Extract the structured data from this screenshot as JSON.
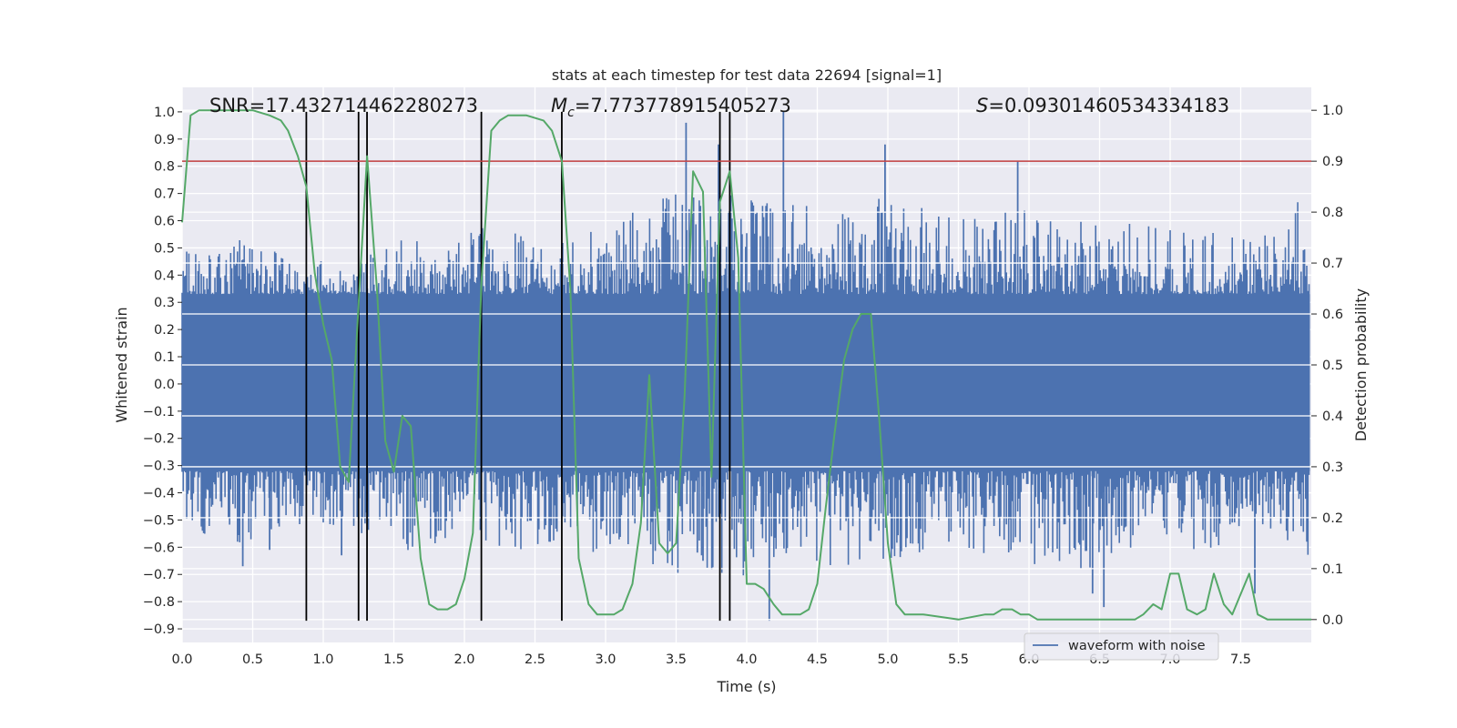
{
  "chart_data": {
    "type": "line",
    "title": "stats at each timestep for test data 22694 [signal=1]",
    "xlabel": "Time (s)",
    "ylabel": "Whitened strain",
    "y2label": "Detection probability",
    "xlim": [
      0.0,
      8.0
    ],
    "ylim": [
      -0.95,
      1.09
    ],
    "y2lim": [
      -0.045,
      1.045
    ],
    "xticks": [
      0.0,
      0.5,
      1.0,
      1.5,
      2.0,
      2.5,
      3.0,
      3.5,
      4.0,
      4.5,
      5.0,
      5.5,
      6.0,
      6.5,
      7.0,
      7.5
    ],
    "xtick_labels": [
      "0.0",
      "0.5",
      "1.0",
      "1.5",
      "2.0",
      "2.5",
      "3.0",
      "3.5",
      "4.0",
      "4.5",
      "5.0",
      "5.5",
      "6.0",
      "6.5",
      "7.0",
      "7.5"
    ],
    "yticks": [
      -0.9,
      -0.8,
      -0.7,
      -0.6,
      -0.5,
      -0.4,
      -0.3,
      -0.2,
      -0.1,
      0.0,
      0.1,
      0.2,
      0.3,
      0.4,
      0.5,
      0.6,
      0.7,
      0.8,
      0.9,
      1.0
    ],
    "ytick_labels": [
      "−0.9",
      "−0.8",
      "−0.7",
      "−0.6",
      "−0.5",
      "−0.4",
      "−0.3",
      "−0.2",
      "−0.1",
      "0.0",
      "0.1",
      "0.2",
      "0.3",
      "0.4",
      "0.5",
      "0.6",
      "0.7",
      "0.8",
      "0.9",
      "1.0"
    ],
    "y2ticks": [
      0.0,
      0.1,
      0.2,
      0.3,
      0.4,
      0.5,
      0.6,
      0.7,
      0.8,
      0.9,
      1.0
    ],
    "y2tick_labels": [
      "0.0",
      "0.1",
      "0.2",
      "0.3",
      "0.4",
      "0.5",
      "0.6",
      "0.7",
      "0.8",
      "0.9",
      "1.0"
    ],
    "grid": true,
    "legend": {
      "location": "lower-right",
      "entries": [
        "waveform with noise"
      ]
    },
    "annotations": {
      "snr": "SNR=17.432714462280273",
      "mc_symbol": "M",
      "mc_sub": "c",
      "mc_value": "=7.773778915405273",
      "s_symbol": "S",
      "s_value": "=0.09301460534334183"
    },
    "threshold_line": {
      "y2": 0.9,
      "color": "#c03d3e"
    },
    "vertical_lines_x": [
      0.88,
      1.25,
      1.31,
      2.12,
      2.69,
      3.81,
      3.88
    ],
    "vertical_lines_y_range": [
      -0.87,
      1.0
    ],
    "waveform": {
      "name": "waveform with noise",
      "color": "#4c72b0",
      "sample_dt": 0.008,
      "core_band": [
        -0.32,
        0.33
      ],
      "envelope_top": [
        [
          0.0,
          0.5
        ],
        [
          0.4,
          0.53
        ],
        [
          0.9,
          0.48
        ],
        [
          1.2,
          0.42
        ],
        [
          1.5,
          0.55
        ],
        [
          1.9,
          0.5
        ],
        [
          2.2,
          0.62
        ],
        [
          2.6,
          0.5
        ],
        [
          3.0,
          0.58
        ],
        [
          3.5,
          0.72
        ],
        [
          3.9,
          0.7
        ],
        [
          4.3,
          0.66
        ],
        [
          4.8,
          0.7
        ],
        [
          5.3,
          0.64
        ],
        [
          5.8,
          0.66
        ],
        [
          6.3,
          0.6
        ],
        [
          6.8,
          0.62
        ],
        [
          7.2,
          0.58
        ],
        [
          7.6,
          0.52
        ],
        [
          8.0,
          0.72
        ]
      ],
      "envelope_bottom": [
        [
          0.0,
          -0.52
        ],
        [
          0.4,
          -0.6
        ],
        [
          0.9,
          -0.52
        ],
        [
          1.2,
          -0.55
        ],
        [
          1.5,
          -0.62
        ],
        [
          1.9,
          -0.6
        ],
        [
          2.2,
          -0.62
        ],
        [
          2.6,
          -0.6
        ],
        [
          3.0,
          -0.66
        ],
        [
          3.5,
          -0.7
        ],
        [
          3.9,
          -0.72
        ],
        [
          4.3,
          -0.66
        ],
        [
          4.8,
          -0.7
        ],
        [
          5.3,
          -0.62
        ],
        [
          5.8,
          -0.64
        ],
        [
          6.3,
          -0.7
        ],
        [
          6.8,
          -0.64
        ],
        [
          7.2,
          -0.62
        ],
        [
          7.6,
          -0.55
        ],
        [
          8.0,
          -0.65
        ]
      ],
      "spikes": [
        [
          3.57,
          0.96
        ],
        [
          3.8,
          0.88
        ],
        [
          4.26,
          1.0
        ],
        [
          4.98,
          0.88
        ],
        [
          5.92,
          0.82
        ],
        [
          3.65,
          -0.62
        ],
        [
          3.69,
          -0.65
        ],
        [
          4.16,
          -0.87
        ],
        [
          6.45,
          -0.77
        ],
        [
          6.53,
          -0.82
        ],
        [
          7.6,
          -0.77
        ],
        [
          1.13,
          -0.63
        ],
        [
          0.43,
          -0.67
        ],
        [
          0.62,
          -0.61
        ]
      ]
    },
    "detection_probability": {
      "name": "Detection probability",
      "color": "#55a868",
      "x": [
        0.0,
        0.06,
        0.12,
        0.25,
        0.5,
        0.62,
        0.7,
        0.75,
        0.82,
        0.88,
        0.94,
        1.0,
        1.06,
        1.12,
        1.18,
        1.25,
        1.31,
        1.38,
        1.44,
        1.5,
        1.56,
        1.62,
        1.69,
        1.75,
        1.81,
        1.88,
        1.94,
        2.0,
        2.06,
        2.12,
        2.19,
        2.25,
        2.31,
        2.44,
        2.56,
        2.62,
        2.69,
        2.75,
        2.81,
        2.88,
        2.94,
        3.0,
        3.06,
        3.12,
        3.19,
        3.25,
        3.31,
        3.38,
        3.44,
        3.5,
        3.56,
        3.62,
        3.69,
        3.75,
        3.81,
        3.88,
        3.94,
        4.0,
        4.06,
        4.12,
        4.19,
        4.25,
        4.31,
        4.38,
        4.44,
        4.5,
        4.56,
        4.62,
        4.69,
        4.75,
        4.81,
        4.88,
        4.94,
        5.0,
        5.06,
        5.12,
        5.19,
        5.25,
        5.5,
        5.69,
        5.75,
        5.81,
        5.88,
        5.94,
        6.0,
        6.06,
        6.12,
        6.25,
        6.5,
        6.62,
        6.75,
        6.81,
        6.88,
        6.94,
        7.0,
        7.06,
        7.12,
        7.19,
        7.25,
        7.31,
        7.38,
        7.44,
        7.5,
        7.56,
        7.62,
        7.69,
        7.75,
        8.0
      ],
      "y": [
        0.78,
        0.99,
        1.0,
        1.0,
        1.0,
        0.99,
        0.98,
        0.96,
        0.91,
        0.85,
        0.68,
        0.58,
        0.51,
        0.3,
        0.27,
        0.62,
        0.91,
        0.65,
        0.35,
        0.29,
        0.4,
        0.38,
        0.12,
        0.03,
        0.02,
        0.02,
        0.03,
        0.08,
        0.17,
        0.66,
        0.96,
        0.98,
        0.99,
        0.99,
        0.98,
        0.96,
        0.9,
        0.65,
        0.12,
        0.03,
        0.01,
        0.01,
        0.01,
        0.02,
        0.07,
        0.19,
        0.48,
        0.15,
        0.13,
        0.15,
        0.44,
        0.88,
        0.84,
        0.28,
        0.82,
        0.88,
        0.71,
        0.07,
        0.07,
        0.06,
        0.03,
        0.01,
        0.01,
        0.01,
        0.02,
        0.07,
        0.22,
        0.36,
        0.51,
        0.57,
        0.6,
        0.6,
        0.39,
        0.15,
        0.03,
        0.01,
        0.01,
        0.01,
        0.0,
        0.01,
        0.01,
        0.02,
        0.02,
        0.01,
        0.01,
        0.0,
        0.0,
        0.0,
        0.0,
        0.0,
        0.0,
        0.01,
        0.03,
        0.02,
        0.09,
        0.09,
        0.02,
        0.01,
        0.02,
        0.09,
        0.03,
        0.01,
        0.05,
        0.09,
        0.01,
        0.0,
        0.0,
        0.0
      ]
    }
  }
}
